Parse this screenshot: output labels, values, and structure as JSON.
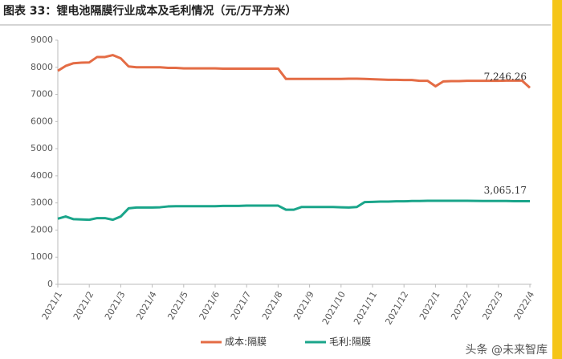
{
  "chart_data": {
    "type": "line",
    "title": "图表 33：锂电池隔膜行业成本及毛利情况（元/万平方米）",
    "categories": [
      "2021/1",
      null,
      null,
      null,
      "2021/2",
      null,
      null,
      null,
      "2021/3",
      null,
      null,
      null,
      "2021/4",
      null,
      null,
      null,
      "2021/5",
      null,
      null,
      null,
      "2021/6",
      null,
      null,
      null,
      "2021/7",
      null,
      null,
      null,
      "2021/8",
      null,
      null,
      null,
      "2021/9",
      null,
      null,
      null,
      "2021/10",
      null,
      null,
      null,
      "2021/11",
      null,
      null,
      null,
      "2021/12",
      null,
      null,
      null,
      "2022/1",
      null,
      null,
      null,
      "2022/2",
      null,
      null,
      null,
      "2022/3",
      null,
      null,
      null,
      "2022/4"
    ],
    "series": [
      {
        "name": "成本:隔膜",
        "color": "#e46c45",
        "values": [
          7870,
          8050,
          8150,
          8170,
          8180,
          8380,
          8380,
          8450,
          8330,
          8030,
          8000,
          8000,
          8000,
          8000,
          7980,
          7980,
          7960,
          7960,
          7960,
          7960,
          7960,
          7950,
          7950,
          7950,
          7950,
          7950,
          7950,
          7950,
          7950,
          7570,
          7570,
          7570,
          7570,
          7570,
          7570,
          7570,
          7570,
          7580,
          7580,
          7570,
          7560,
          7550,
          7540,
          7540,
          7530,
          7530,
          7500,
          7500,
          7300,
          7480,
          7490,
          7490,
          7500,
          7500,
          7500,
          7500,
          7500,
          7510,
          7510,
          7510,
          7246.26
        ],
        "value_labels": [
          null,
          null,
          null,
          null,
          null,
          null,
          null,
          null,
          null,
          null,
          null,
          null,
          null,
          null,
          null,
          null,
          null,
          null,
          null,
          null,
          null,
          null,
          null,
          null,
          null,
          null,
          null,
          null,
          null,
          null,
          null,
          null,
          null,
          null,
          null,
          null,
          null,
          null,
          null,
          null,
          null,
          null,
          null,
          null,
          null,
          null,
          null,
          null,
          null,
          null,
          null,
          null,
          null,
          null,
          null,
          null,
          null,
          null,
          null,
          null,
          "7,246.26"
        ]
      },
      {
        "name": "毛利:隔膜",
        "color": "#1aa58a",
        "values": [
          2420,
          2500,
          2400,
          2390,
          2380,
          2440,
          2440,
          2380,
          2500,
          2800,
          2830,
          2830,
          2830,
          2840,
          2870,
          2880,
          2880,
          2880,
          2880,
          2880,
          2880,
          2890,
          2890,
          2890,
          2900,
          2900,
          2900,
          2900,
          2900,
          2750,
          2750,
          2850,
          2850,
          2850,
          2850,
          2850,
          2840,
          2830,
          2850,
          3030,
          3040,
          3050,
          3050,
          3060,
          3060,
          3070,
          3070,
          3080,
          3080,
          3080,
          3080,
          3080,
          3080,
          3075,
          3070,
          3070,
          3070,
          3070,
          3065,
          3065,
          3065.17
        ],
        "value_labels": [
          null,
          null,
          null,
          null,
          null,
          null,
          null,
          null,
          null,
          null,
          null,
          null,
          null,
          null,
          null,
          null,
          null,
          null,
          null,
          null,
          null,
          null,
          null,
          null,
          null,
          null,
          null,
          null,
          null,
          null,
          null,
          null,
          null,
          null,
          null,
          null,
          null,
          null,
          null,
          null,
          null,
          null,
          null,
          null,
          null,
          null,
          null,
          null,
          null,
          null,
          null,
          null,
          null,
          null,
          null,
          null,
          null,
          null,
          null,
          null,
          "3,065.17"
        ]
      }
    ],
    "ylim": [
      0,
      9000
    ],
    "yticks": [
      0,
      1000,
      2000,
      3000,
      4000,
      5000,
      6000,
      7000,
      8000,
      9000
    ],
    "grid": false,
    "legend": "bottom",
    "watermark": "头条 @未来智库"
  }
}
